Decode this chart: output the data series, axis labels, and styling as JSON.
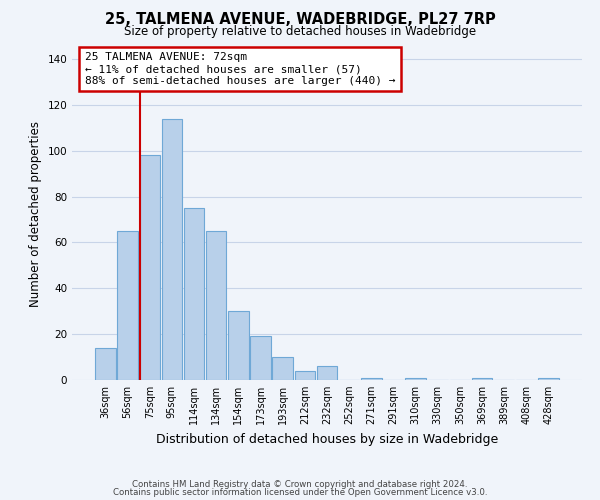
{
  "title": "25, TALMENA AVENUE, WADEBRIDGE, PL27 7RP",
  "subtitle": "Size of property relative to detached houses in Wadebridge",
  "xlabel": "Distribution of detached houses by size in Wadebridge",
  "ylabel": "Number of detached properties",
  "bar_labels": [
    "36sqm",
    "56sqm",
    "75sqm",
    "95sqm",
    "114sqm",
    "134sqm",
    "154sqm",
    "173sqm",
    "193sqm",
    "212sqm",
    "232sqm",
    "252sqm",
    "271sqm",
    "291sqm",
    "310sqm",
    "330sqm",
    "350sqm",
    "369sqm",
    "389sqm",
    "408sqm",
    "428sqm"
  ],
  "bar_heights": [
    14,
    65,
    98,
    114,
    75,
    65,
    30,
    19,
    10,
    4,
    6,
    0,
    1,
    0,
    1,
    0,
    0,
    1,
    0,
    0,
    1
  ],
  "bar_color": "#b8d0ea",
  "bar_edge_color": "#6fa8d6",
  "vline_color": "#cc0000",
  "annotation_line1": "25 TALMENA AVENUE: 72sqm",
  "annotation_line2": "← 11% of detached houses are smaller (57)",
  "annotation_line3": "88% of semi-detached houses are larger (440) →",
  "annotation_box_color": "#ffffff",
  "annotation_box_edge_color": "#cc0000",
  "ylim": [
    0,
    145
  ],
  "yticks": [
    0,
    20,
    40,
    60,
    80,
    100,
    120,
    140
  ],
  "footer1": "Contains HM Land Registry data © Crown copyright and database right 2024.",
  "footer2": "Contains public sector information licensed under the Open Government Licence v3.0.",
  "bg_color": "#f0f4fa",
  "grid_color": "#c8d4e8"
}
